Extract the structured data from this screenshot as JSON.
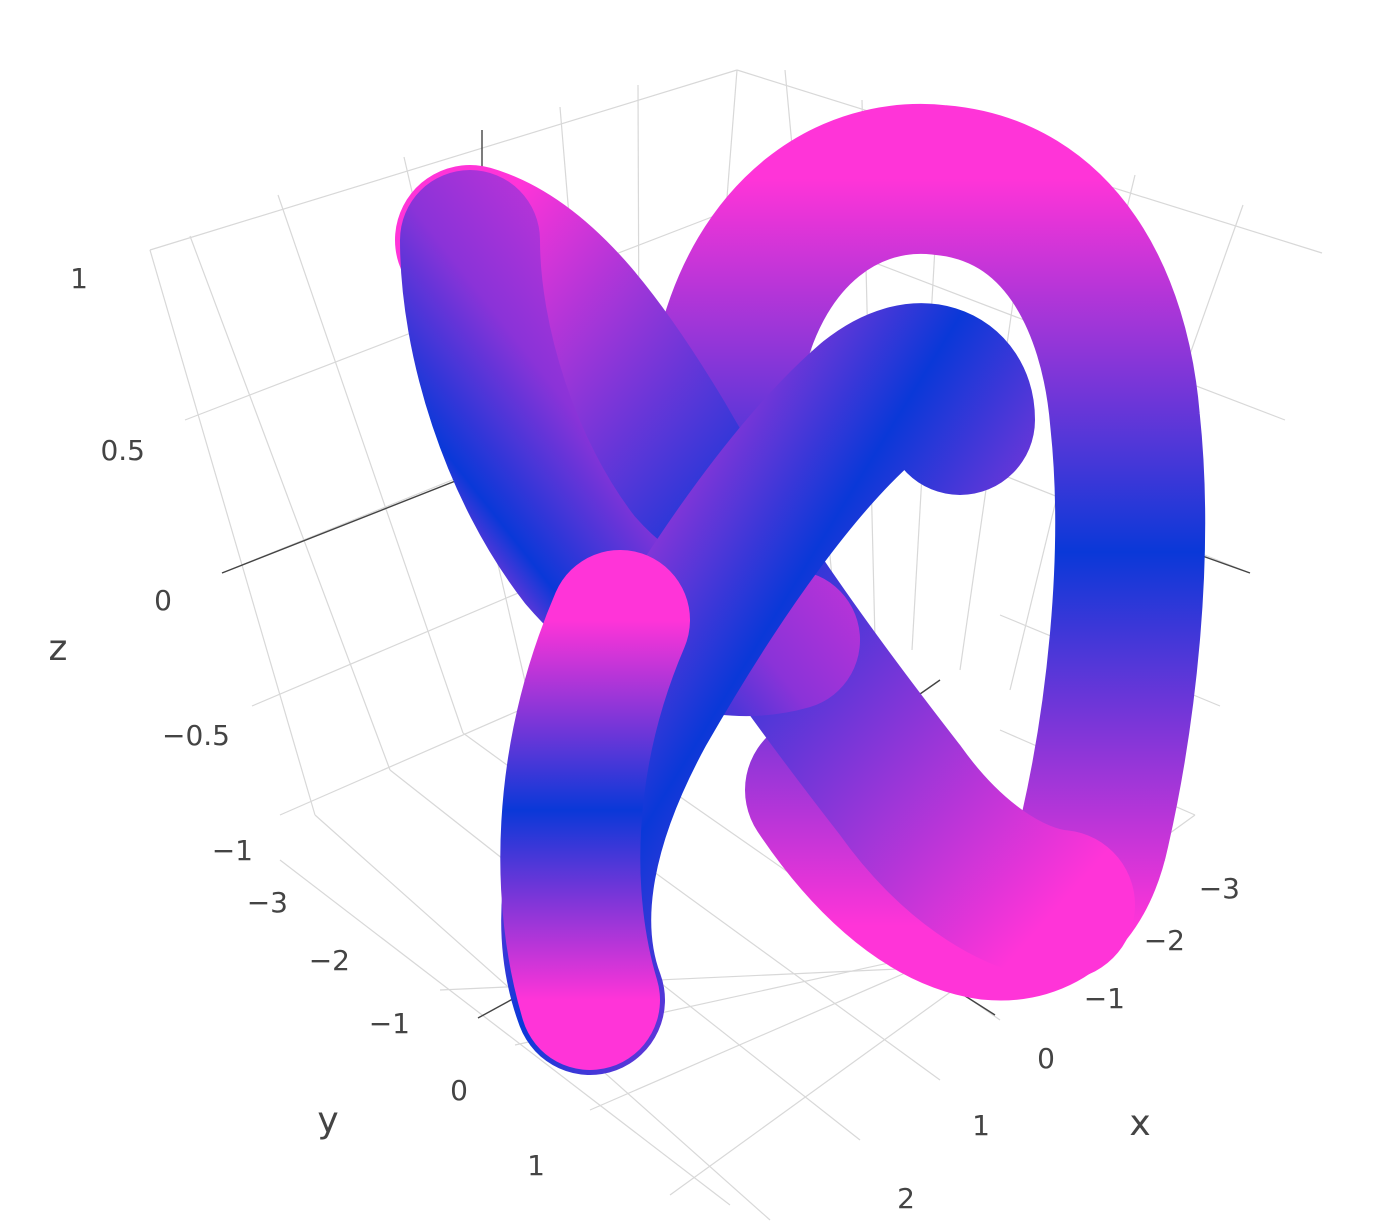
{
  "chart_data": {
    "type": "surface",
    "description_of_mark": "tube surface following a trefoil knot, colored by z value",
    "axes": {
      "x": {
        "title": "x",
        "ticks": [
          2,
          1,
          0,
          -1,
          -2,
          -3
        ],
        "tick_labels": [
          "2",
          "1",
          "0",
          "−1",
          "−2",
          "−3"
        ]
      },
      "y": {
        "title": "y",
        "ticks": [
          1,
          0,
          -1,
          -2,
          -3
        ],
        "tick_labels": [
          "1",
          "0",
          "−1",
          "−2",
          "−3"
        ]
      },
      "z": {
        "title": "z",
        "ticks": [
          1,
          0.5,
          0,
          -0.5,
          -1
        ],
        "tick_labels": [
          "1",
          "0.5",
          "0",
          "−0.5",
          "−1"
        ]
      }
    },
    "colorscale": [
      "#0a38d8",
      "#ff34d8"
    ],
    "grid": true,
    "legend": false
  }
}
